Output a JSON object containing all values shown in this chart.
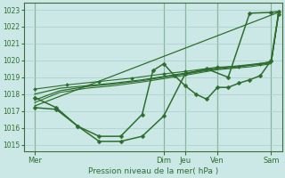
{
  "background_color": "#cce8e6",
  "grid_color": "#aacfcc",
  "line_color": "#2d6e2d",
  "title": "Pression niveau de la mer( hPa )",
  "ylim": [
    1014.6,
    1023.4
  ],
  "yticks": [
    1015,
    1016,
    1017,
    1018,
    1019,
    1020,
    1021,
    1022,
    1023
  ],
  "xlim": [
    0,
    144
  ],
  "day_positions": [
    6,
    78,
    90,
    108,
    138
  ],
  "day_labels": [
    "Mer",
    "Dim",
    "Jeu",
    "Ven",
    "Sam"
  ],
  "vline_positions": [
    6,
    78,
    90,
    108,
    138
  ],
  "lines": [
    {
      "x": [
        6,
        18,
        30,
        42,
        54,
        66,
        78,
        90,
        102,
        114,
        126,
        138,
        142
      ],
      "y": [
        1017.2,
        1017.1,
        1016.1,
        1015.2,
        1015.2,
        1015.5,
        1016.7,
        1019.2,
        1019.5,
        1019.0,
        1022.8,
        1022.85,
        1022.9
      ],
      "marker": "D",
      "ms": 2.5,
      "lw": 1.1
    },
    {
      "x": [
        6,
        18,
        30,
        42,
        54,
        66,
        72,
        78,
        84,
        90,
        96,
        102,
        108,
        114,
        120,
        126,
        132,
        138,
        142
      ],
      "y": [
        1017.8,
        1017.2,
        1016.1,
        1015.5,
        1015.5,
        1016.8,
        1019.4,
        1019.8,
        1019.1,
        1018.5,
        1018.0,
        1017.7,
        1018.4,
        1018.4,
        1018.65,
        1018.85,
        1019.1,
        1020.0,
        1022.75
      ],
      "marker": "D",
      "ms": 2.5,
      "lw": 1.1
    },
    {
      "x": [
        6,
        20,
        35,
        50,
        66,
        78,
        90,
        108,
        126,
        138,
        142
      ],
      "y": [
        1018.0,
        1018.35,
        1018.5,
        1018.65,
        1018.85,
        1019.05,
        1019.25,
        1019.55,
        1019.75,
        1019.9,
        1022.6
      ],
      "marker": null,
      "ms": 0,
      "lw": 0.9
    },
    {
      "x": [
        6,
        20,
        35,
        50,
        66,
        78,
        90,
        108,
        126,
        138,
        142
      ],
      "y": [
        1017.65,
        1018.2,
        1018.45,
        1018.6,
        1018.8,
        1019.0,
        1019.2,
        1019.5,
        1019.7,
        1019.85,
        1022.7
      ],
      "marker": null,
      "ms": 0,
      "lw": 0.9
    },
    {
      "x": [
        6,
        20,
        35,
        50,
        66,
        78,
        90,
        108,
        126,
        138,
        142
      ],
      "y": [
        1017.5,
        1018.1,
        1018.35,
        1018.5,
        1018.72,
        1018.92,
        1019.12,
        1019.45,
        1019.62,
        1019.8,
        1022.75
      ],
      "marker": null,
      "ms": 0,
      "lw": 0.8
    },
    {
      "x": [
        6,
        142
      ],
      "y": [
        1017.3,
        1022.85
      ],
      "marker": null,
      "ms": 0,
      "lw": 0.9
    },
    {
      "x": [
        6,
        24,
        42,
        60,
        78,
        90,
        108,
        120,
        132,
        138
      ],
      "y": [
        1018.3,
        1018.55,
        1018.75,
        1018.95,
        1019.2,
        1019.35,
        1019.6,
        1019.65,
        1019.8,
        1019.95
      ],
      "marker": "D",
      "ms": 2.0,
      "lw": 0.8
    }
  ]
}
